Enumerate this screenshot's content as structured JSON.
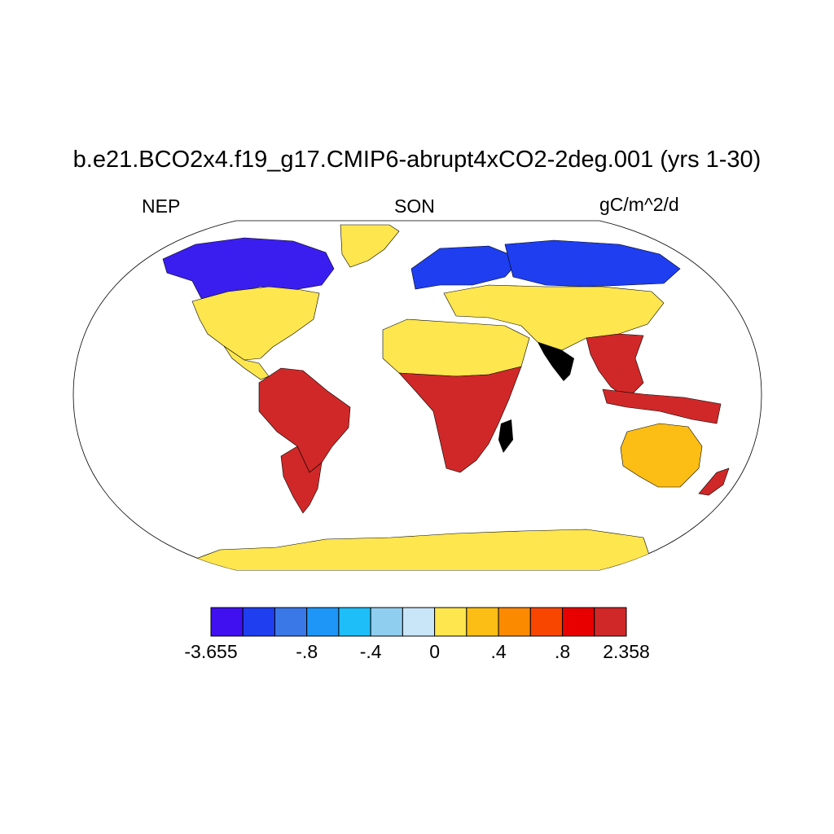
{
  "title": "b.e21.BCO2x4.f19_g17.CMIP6-abrupt4xCO2-2deg.001 (yrs 1-30)",
  "left_label": "NEP",
  "center_label": "SON",
  "right_label": "gC/m^2/d",
  "colorbar": {
    "colors": [
      "#4010f0",
      "#1e3ef0",
      "#3a78e8",
      "#1e96f8",
      "#1ebef8",
      "#90cef0",
      "#c8e6f8",
      "#fde64e",
      "#fcbe14",
      "#fc8a00",
      "#f84600",
      "#e80000",
      "#d02828"
    ],
    "labels": [
      {
        "text": "-3.655",
        "edge": 0
      },
      {
        "text": "-.8",
        "edge": 3
      },
      {
        "text": "-.4",
        "edge": 5
      },
      {
        "text": "0",
        "edge": 7
      },
      {
        "text": ".4",
        "edge": 9
      },
      {
        "text": ".8",
        "edge": 11
      },
      {
        "text": "2.358",
        "edge": 13
      }
    ]
  },
  "regions": [
    {
      "name": "north-america-boreal",
      "color": "#3a1ef0"
    },
    {
      "name": "north-america-mid",
      "color": "#fde64e"
    },
    {
      "name": "amazon",
      "color": "#d02828"
    },
    {
      "name": "africa-sahel",
      "color": "#fde64e"
    },
    {
      "name": "central-africa",
      "color": "#d02828"
    },
    {
      "name": "eurasia-boreal",
      "color": "#1e3ef0"
    },
    {
      "name": "southeast-asia",
      "color": "#d02828"
    },
    {
      "name": "australia",
      "color": "#fcbe14"
    },
    {
      "name": "antarctica",
      "color": "#fde64e"
    },
    {
      "name": "greenland",
      "color": "#fde64e"
    }
  ]
}
